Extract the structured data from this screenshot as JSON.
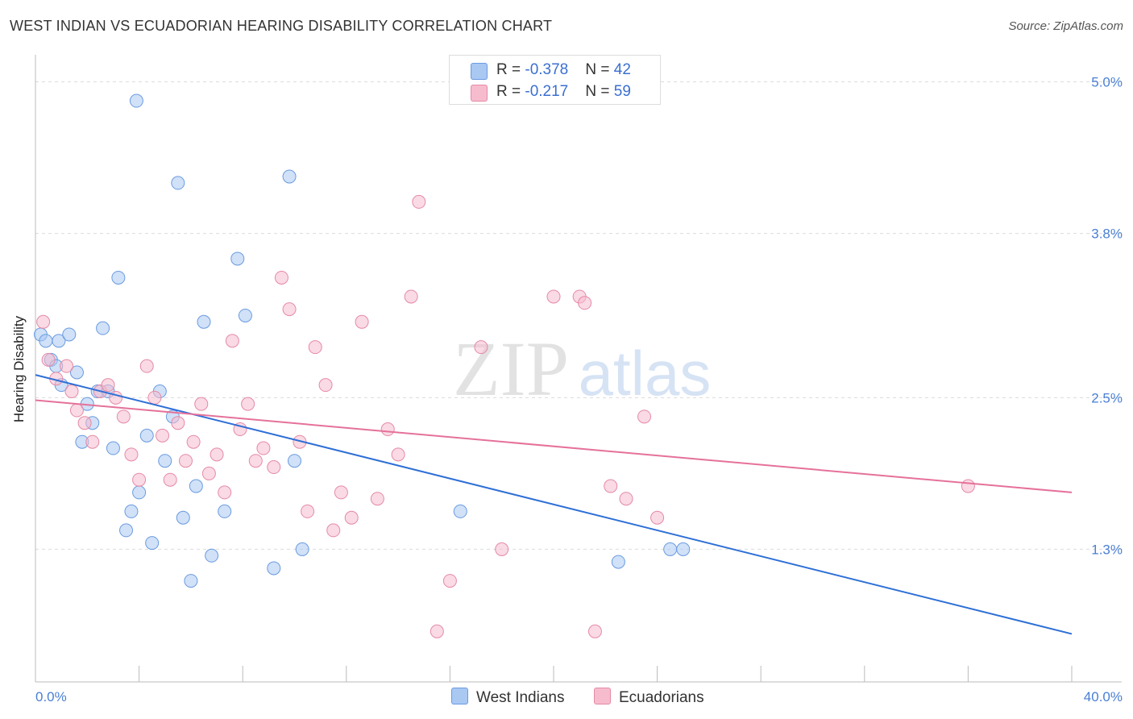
{
  "title": "WEST INDIAN VS ECUADORIAN HEARING DISABILITY CORRELATION CHART",
  "source": "Source: ZipAtlas.com",
  "watermark": {
    "zip": "ZIP",
    "atlas": "atlas"
  },
  "legend": {
    "rows": [
      {
        "r_label": "R = ",
        "r_value": "-0.378",
        "n_label": "N = ",
        "n_value": "42",
        "color": "#a9c8f2",
        "border": "#6a9be0"
      },
      {
        "r_label": "R = ",
        "r_value": "-0.217",
        "n_label": "N = ",
        "n_value": "59",
        "color": "#f6bccd",
        "border": "#e58aa6"
      }
    ]
  },
  "series_legend": [
    {
      "label": "West Indians",
      "color": "#a9c8f2",
      "border": "#6a9be0"
    },
    {
      "label": "Ecuadorians",
      "color": "#f6bccd",
      "border": "#e58aa6"
    }
  ],
  "chart_data": {
    "type": "scatter",
    "title": "WEST INDIAN VS ECUADORIAN HEARING DISABILITY CORRELATION CHART",
    "xlabel": "",
    "ylabel": "Hearing Disability",
    "xlim": [
      0,
      40
    ],
    "ylim": [
      0.25,
      5.15
    ],
    "x_tick_labels": [
      "0.0%",
      "40.0%"
    ],
    "y_ticks": [
      1.3,
      2.5,
      3.8,
      5.0
    ],
    "y_tick_labels": [
      "1.3%",
      "2.5%",
      "3.8%",
      "5.0%"
    ],
    "series": [
      {
        "name": "West Indians",
        "color": "#6a9be0",
        "fill": "#a9c8f2",
        "line_color": "#2e6fd6",
        "trend": {
          "x0": 0,
          "y0": 2.68,
          "x1": 40,
          "y1": 0.63
        },
        "points": [
          [
            0.2,
            3.0
          ],
          [
            0.4,
            2.95
          ],
          [
            0.6,
            2.8
          ],
          [
            0.8,
            2.75
          ],
          [
            0.9,
            2.95
          ],
          [
            1.0,
            2.6
          ],
          [
            1.3,
            3.0
          ],
          [
            1.6,
            2.7
          ],
          [
            1.8,
            2.15
          ],
          [
            2.0,
            2.45
          ],
          [
            2.2,
            2.3
          ],
          [
            2.4,
            2.55
          ],
          [
            2.6,
            3.05
          ],
          [
            2.8,
            2.55
          ],
          [
            3.0,
            2.1
          ],
          [
            3.2,
            3.45
          ],
          [
            3.5,
            1.45
          ],
          [
            3.7,
            1.6
          ],
          [
            3.9,
            4.85
          ],
          [
            4.0,
            1.75
          ],
          [
            4.3,
            2.2
          ],
          [
            4.5,
            1.35
          ],
          [
            4.8,
            2.55
          ],
          [
            5.0,
            2.0
          ],
          [
            5.3,
            2.35
          ],
          [
            5.5,
            4.2
          ],
          [
            5.7,
            1.55
          ],
          [
            6.0,
            1.05
          ],
          [
            6.2,
            1.8
          ],
          [
            6.5,
            3.1
          ],
          [
            6.8,
            1.25
          ],
          [
            7.3,
            1.6
          ],
          [
            7.8,
            3.6
          ],
          [
            8.1,
            3.15
          ],
          [
            9.2,
            1.15
          ],
          [
            9.8,
            4.25
          ],
          [
            10.0,
            2.0
          ],
          [
            10.3,
            1.3
          ],
          [
            16.4,
            1.6
          ],
          [
            22.5,
            1.2
          ],
          [
            24.5,
            1.3
          ],
          [
            25.0,
            1.3
          ]
        ]
      },
      {
        "name": "Ecuadorians",
        "color": "#e58aa6",
        "fill": "#f6bccd",
        "line_color": "#e5719a",
        "trend": {
          "x0": 0,
          "y0": 2.48,
          "x1": 40,
          "y1": 1.75
        },
        "points": [
          [
            0.3,
            3.1
          ],
          [
            0.5,
            2.8
          ],
          [
            0.8,
            2.65
          ],
          [
            1.2,
            2.75
          ],
          [
            1.4,
            2.55
          ],
          [
            1.6,
            2.4
          ],
          [
            1.9,
            2.3
          ],
          [
            2.2,
            2.15
          ],
          [
            2.5,
            2.55
          ],
          [
            2.8,
            2.6
          ],
          [
            3.1,
            2.5
          ],
          [
            3.4,
            2.35
          ],
          [
            3.7,
            2.05
          ],
          [
            4.0,
            1.85
          ],
          [
            4.3,
            2.75
          ],
          [
            4.6,
            2.5
          ],
          [
            4.9,
            2.2
          ],
          [
            5.2,
            1.85
          ],
          [
            5.5,
            2.3
          ],
          [
            5.8,
            2.0
          ],
          [
            6.1,
            2.15
          ],
          [
            6.4,
            2.45
          ],
          [
            6.7,
            1.9
          ],
          [
            7.0,
            2.05
          ],
          [
            7.3,
            1.75
          ],
          [
            7.6,
            2.95
          ],
          [
            7.9,
            2.25
          ],
          [
            8.2,
            2.45
          ],
          [
            8.5,
            2.0
          ],
          [
            8.8,
            2.1
          ],
          [
            9.2,
            1.95
          ],
          [
            9.5,
            3.45
          ],
          [
            9.8,
            3.2
          ],
          [
            10.2,
            2.15
          ],
          [
            10.5,
            1.6
          ],
          [
            10.8,
            2.9
          ],
          [
            11.2,
            2.6
          ],
          [
            11.5,
            1.45
          ],
          [
            11.8,
            1.75
          ],
          [
            12.2,
            1.55
          ],
          [
            12.6,
            3.1
          ],
          [
            13.2,
            1.7
          ],
          [
            13.6,
            2.25
          ],
          [
            14.0,
            2.05
          ],
          [
            14.5,
            3.3
          ],
          [
            14.8,
            4.05
          ],
          [
            15.5,
            0.65
          ],
          [
            16.0,
            1.05
          ],
          [
            17.2,
            2.9
          ],
          [
            18.0,
            1.3
          ],
          [
            20.0,
            3.3
          ],
          [
            21.0,
            3.3
          ],
          [
            21.2,
            3.25
          ],
          [
            21.6,
            0.65
          ],
          [
            22.2,
            1.8
          ],
          [
            22.8,
            1.7
          ],
          [
            23.5,
            2.35
          ],
          [
            24.0,
            1.55
          ],
          [
            36.0,
            1.8
          ]
        ]
      }
    ]
  }
}
